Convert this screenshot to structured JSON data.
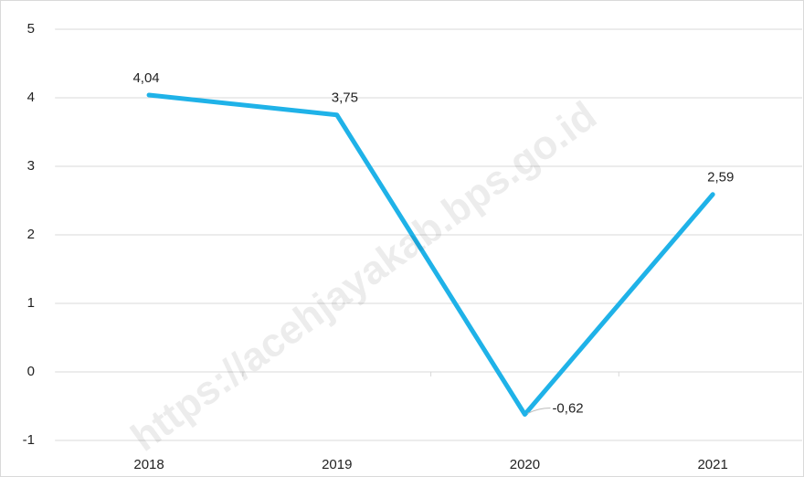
{
  "chart_data": {
    "type": "line",
    "categories": [
      "2018",
      "2019",
      "2020",
      "2021"
    ],
    "series": [
      {
        "name": null,
        "color": "#1fb2e8",
        "values": [
          4.04,
          3.75,
          -0.62,
          2.59
        ],
        "value_labels": [
          "4,04",
          "3,75",
          "-0,62",
          "2,59"
        ]
      }
    ],
    "ylim": [
      -1,
      5
    ],
    "yticks": [
      -1,
      0,
      1,
      2,
      3,
      4,
      5
    ],
    "grid": true,
    "watermark": "https://acehjayakab.bps.go.id"
  }
}
